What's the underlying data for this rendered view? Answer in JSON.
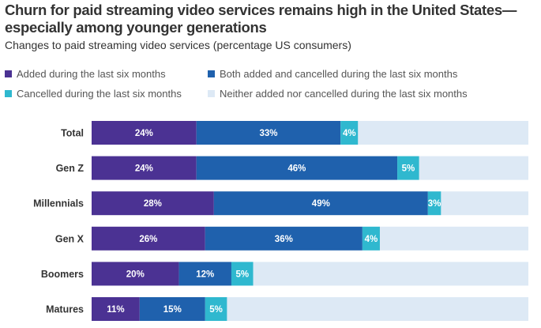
{
  "header": {
    "title": "Churn for paid streaming video services remains high in the United States—especially among younger generations",
    "subtitle": "Changes to paid streaming video services (percentage US consumers)"
  },
  "chart_data": {
    "type": "bar",
    "orientation": "horizontal",
    "stacked": true,
    "categories": [
      "Total",
      "Gen Z",
      "Millennials",
      "Gen X",
      "Boomers",
      "Matures"
    ],
    "series": [
      {
        "name": "Added during the last six months",
        "color": "#4b3293",
        "values": [
          24,
          24,
          28,
          26,
          20,
          11
        ]
      },
      {
        "name": "Both added and cancelled during the last six months",
        "color": "#1f61ad",
        "values": [
          33,
          46,
          49,
          36,
          12,
          15
        ]
      },
      {
        "name": "Cancelled during the last six months",
        "color": "#2fb8cf",
        "values": [
          4,
          5,
          3,
          4,
          5,
          5
        ]
      },
      {
        "name": "Neither added nor cancelled during the last six months",
        "color": "#dde9f5",
        "values": [
          39,
          25,
          20,
          34,
          63,
          69
        ]
      }
    ],
    "value_suffix": "%",
    "labeled_series": [
      0,
      1,
      2
    ],
    "xlim": [
      0,
      100
    ],
    "grid": false,
    "legend": "top"
  }
}
